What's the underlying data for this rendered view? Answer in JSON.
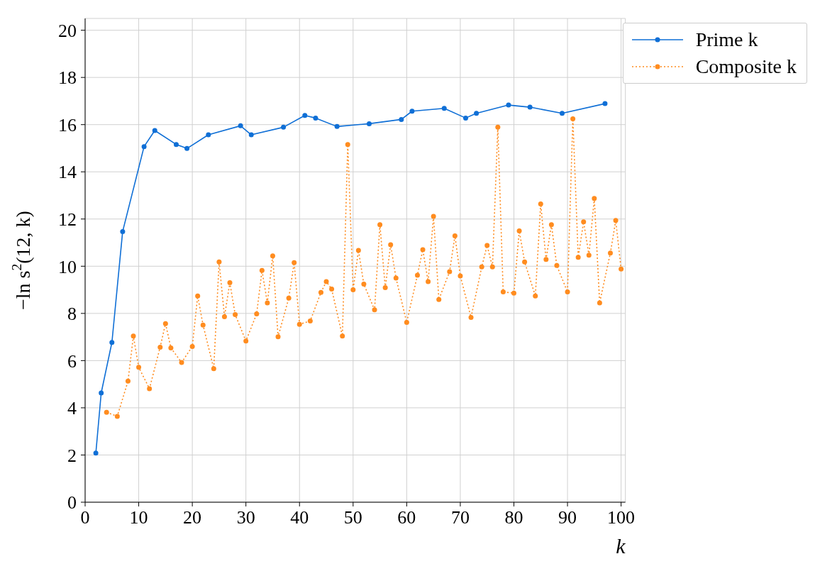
{
  "chart_data": {
    "type": "line",
    "xlabel": "k",
    "ylabel": "−ln s$^{2}$(12, k)",
    "xlim": [
      0,
      100.8
    ],
    "xticks": [
      0,
      10,
      20,
      30,
      40,
      50,
      60,
      70,
      80,
      90,
      100
    ],
    "ylim": [
      0,
      20.5
    ],
    "yticks": [
      0,
      2,
      4,
      6,
      8,
      10,
      12,
      14,
      16,
      18,
      20
    ],
    "grid": true,
    "legend": "top right",
    "marker": "circle",
    "series": [
      {
        "name": "Prime k",
        "color": "#0f6fd6",
        "line_style": "solid",
        "x": [
          2,
          3,
          5,
          7,
          11,
          13,
          17,
          19,
          23,
          29,
          31,
          37,
          41,
          43,
          47,
          53,
          59,
          61,
          67,
          71,
          73,
          79,
          83,
          89,
          97
        ],
        "values": [
          2.08,
          4.63,
          6.77,
          11.47,
          15.07,
          15.75,
          15.16,
          14.99,
          15.57,
          15.95,
          15.57,
          15.89,
          16.39,
          16.28,
          15.92,
          16.04,
          16.22,
          16.57,
          16.69,
          16.28,
          16.48,
          16.83,
          16.74,
          16.48,
          16.89
        ]
      },
      {
        "name": "Composite k",
        "color": "#ff8c1f",
        "line_style": "dotted",
        "x": [
          4,
          6,
          8,
          9,
          10,
          12,
          14,
          15,
          16,
          18,
          20,
          21,
          22,
          24,
          25,
          26,
          27,
          28,
          30,
          32,
          33,
          34,
          35,
          36,
          38,
          39,
          40,
          42,
          44,
          45,
          46,
          48,
          49,
          50,
          51,
          52,
          54,
          55,
          56,
          57,
          58,
          60,
          62,
          63,
          64,
          65,
          66,
          68,
          69,
          70,
          72,
          74,
          75,
          76,
          77,
          78,
          80,
          81,
          82,
          84,
          85,
          86,
          87,
          88,
          90,
          91,
          92,
          93,
          94,
          95,
          96,
          98,
          99,
          100
        ],
        "values": [
          3.81,
          3.64,
          5.13,
          7.04,
          5.72,
          4.81,
          6.57,
          7.57,
          6.54,
          5.92,
          6.6,
          8.74,
          7.51,
          5.66,
          10.18,
          7.86,
          9.3,
          7.95,
          6.83,
          7.98,
          9.82,
          8.45,
          10.44,
          7.01,
          8.65,
          10.15,
          7.54,
          7.68,
          8.89,
          9.35,
          9.03,
          7.04,
          15.16,
          9.0,
          10.67,
          9.24,
          8.15,
          11.76,
          9.09,
          10.91,
          9.5,
          7.62,
          9.62,
          10.7,
          9.35,
          12.11,
          8.59,
          9.77,
          11.29,
          9.59,
          7.83,
          9.97,
          10.88,
          9.97,
          15.89,
          8.91,
          8.86,
          11.5,
          10.18,
          8.74,
          12.64,
          10.29,
          11.76,
          10.03,
          8.91,
          16.25,
          10.38,
          11.88,
          10.47,
          12.87,
          8.45,
          10.56,
          11.94,
          9.88
        ]
      }
    ]
  }
}
